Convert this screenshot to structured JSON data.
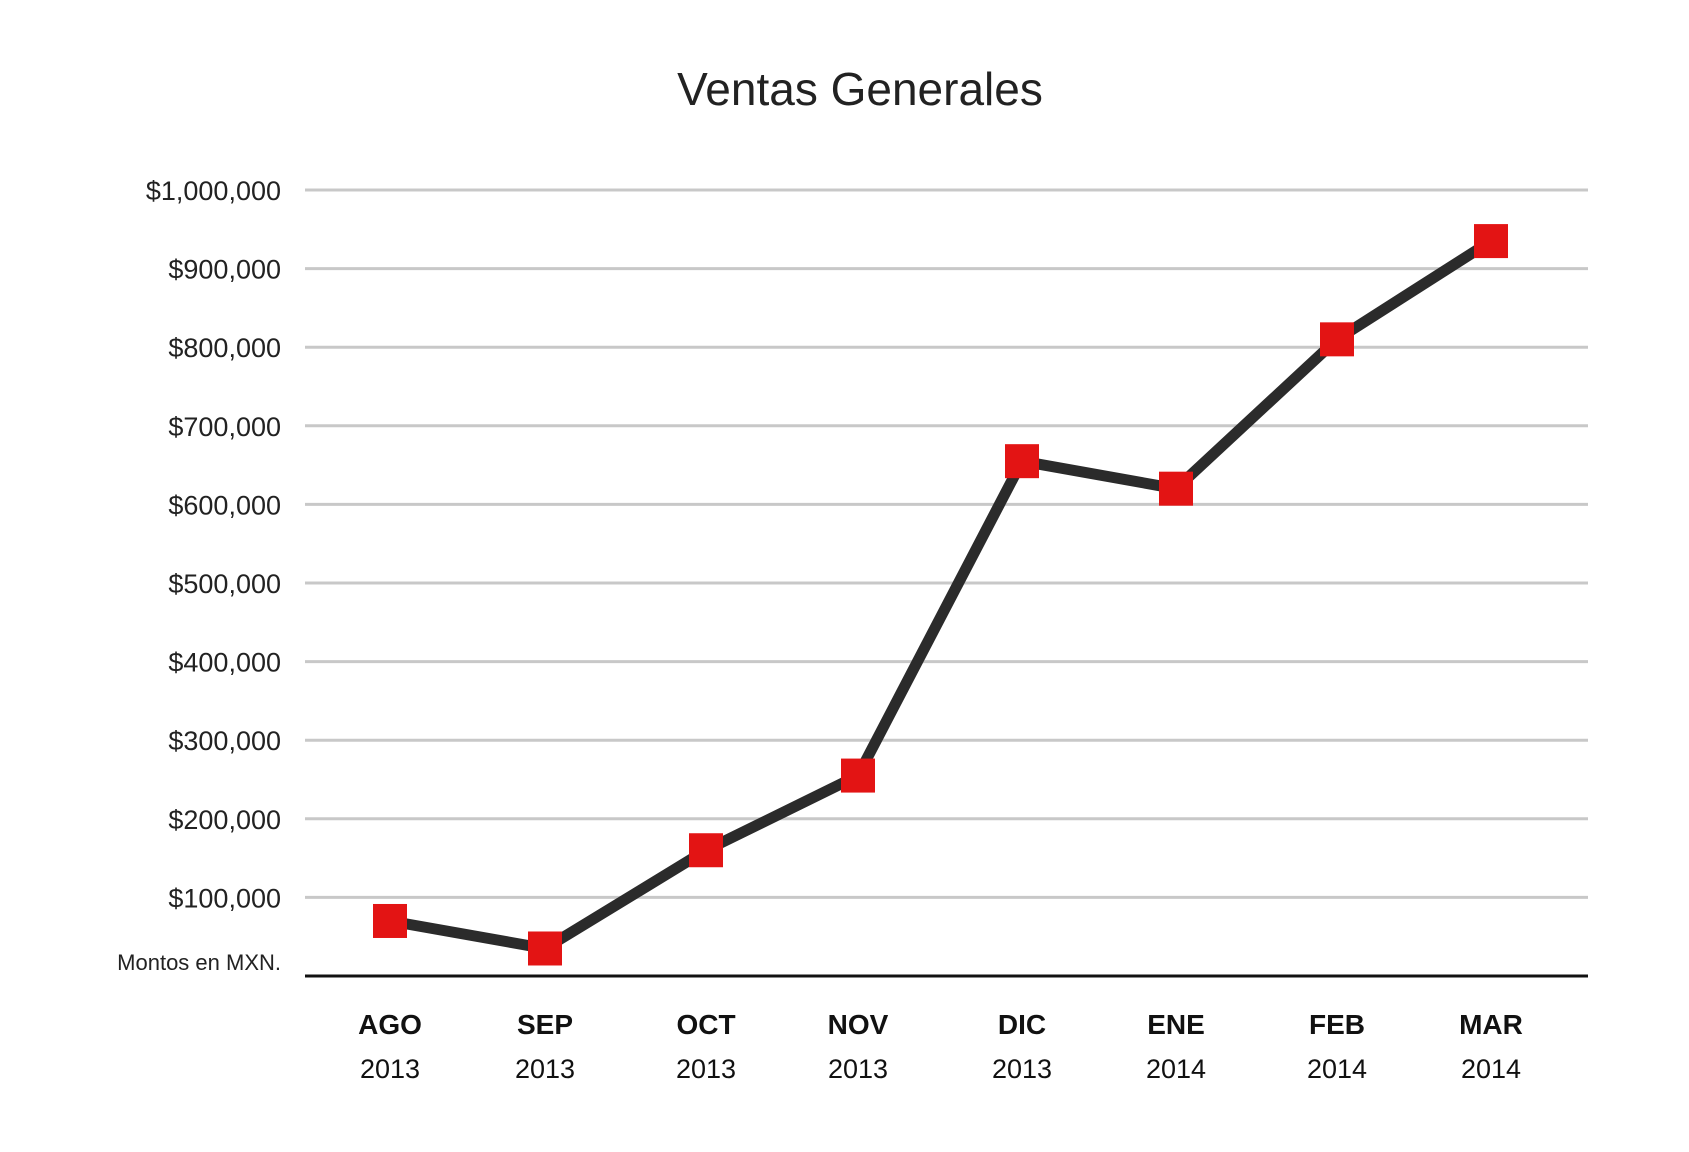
{
  "chart_data": {
    "type": "line",
    "title": "Ventas Generales",
    "note": "Montos en MXN.",
    "categories": [
      {
        "month": "AGO",
        "year": "2013"
      },
      {
        "month": "SEP",
        "year": "2013"
      },
      {
        "month": "OCT",
        "year": "2013"
      },
      {
        "month": "NOV",
        "year": "2013"
      },
      {
        "month": "DIC",
        "year": "2013"
      },
      {
        "month": "ENE",
        "year": "2014"
      },
      {
        "month": "FEB",
        "year": "2014"
      },
      {
        "month": "MAR",
        "year": "2014"
      }
    ],
    "series": [
      {
        "values": [
          70000,
          35000,
          160000,
          255000,
          655000,
          620000,
          810000,
          935000
        ]
      }
    ],
    "ylim": [
      0,
      1000000
    ],
    "yticks": [
      {
        "value": 100000,
        "label": "$100,000"
      },
      {
        "value": 200000,
        "label": "$200,000"
      },
      {
        "value": 300000,
        "label": "$300,000"
      },
      {
        "value": 400000,
        "label": "$400,000"
      },
      {
        "value": 500000,
        "label": "$500,000"
      },
      {
        "value": 600000,
        "label": "$600,000"
      },
      {
        "value": 700000,
        "label": "$700,000"
      },
      {
        "value": 800000,
        "label": "$800,000"
      },
      {
        "value": 900000,
        "label": "$900,000"
      },
      {
        "value": 1000000,
        "label": "$1,000,000"
      }
    ],
    "grid": true,
    "legend": "none",
    "colors": {
      "line": "#2b2b2b",
      "marker": "#e31414",
      "grid": "#c8c8c8",
      "axis": "#111111"
    }
  }
}
